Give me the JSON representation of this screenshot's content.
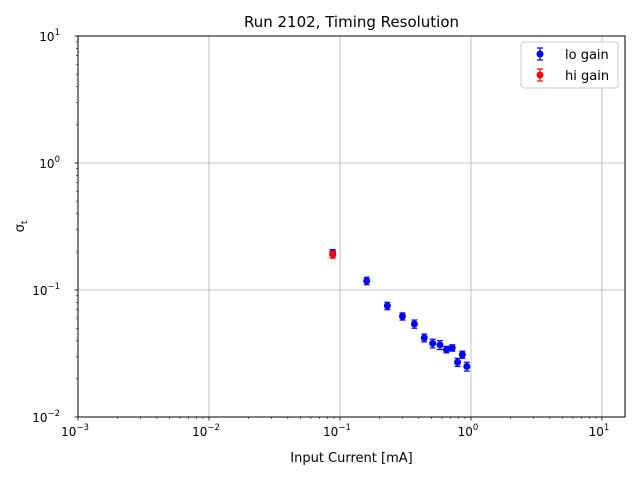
{
  "chart_data": {
    "type": "scatter",
    "title": "Run 2102, Timing Resolution",
    "xlabel": "Input Current [mA]",
    "ylabel": "σ",
    "ylabel_subscript": "t",
    "xscale": "log",
    "yscale": "log",
    "xlim": [
      0.001,
      15
    ],
    "ylim": [
      0.01,
      10
    ],
    "grid": true,
    "legend_position": "top-right",
    "x_ticks": [
      {
        "value": 0.001,
        "base": "10",
        "exp": "−3"
      },
      {
        "value": 0.01,
        "base": "10",
        "exp": "−2"
      },
      {
        "value": 0.1,
        "base": "10",
        "exp": "−1"
      },
      {
        "value": 1,
        "base": "10",
        "exp": "0"
      },
      {
        "value": 10,
        "base": "10",
        "exp": "1"
      }
    ],
    "y_ticks": [
      {
        "value": 0.01,
        "base": "10",
        "exp": "−2"
      },
      {
        "value": 0.1,
        "base": "10",
        "exp": "−1"
      },
      {
        "value": 1,
        "base": "10",
        "exp": "0"
      },
      {
        "value": 10,
        "base": "10",
        "exp": "1"
      }
    ],
    "series": [
      {
        "name": "lo gain",
        "color": "#0000ff",
        "points": [
          {
            "x": 0.088,
            "y": 0.196,
            "err": 0.012
          },
          {
            "x": 0.16,
            "y": 0.118,
            "err": 0.008
          },
          {
            "x": 0.23,
            "y": 0.075,
            "err": 0.005
          },
          {
            "x": 0.3,
            "y": 0.062,
            "err": 0.004
          },
          {
            "x": 0.37,
            "y": 0.054,
            "err": 0.004
          },
          {
            "x": 0.44,
            "y": 0.042,
            "err": 0.003
          },
          {
            "x": 0.51,
            "y": 0.038,
            "err": 0.003
          },
          {
            "x": 0.58,
            "y": 0.037,
            "err": 0.003
          },
          {
            "x": 0.65,
            "y": 0.034,
            "err": 0.002
          },
          {
            "x": 0.72,
            "y": 0.035,
            "err": 0.002
          },
          {
            "x": 0.79,
            "y": 0.027,
            "err": 0.002
          },
          {
            "x": 0.86,
            "y": 0.031,
            "err": 0.002
          },
          {
            "x": 0.93,
            "y": 0.025,
            "err": 0.002
          }
        ]
      },
      {
        "name": "hi gain",
        "color": "#ff0000",
        "points": [
          {
            "x": 0.088,
            "y": 0.19,
            "err": 0.012
          }
        ]
      }
    ]
  }
}
